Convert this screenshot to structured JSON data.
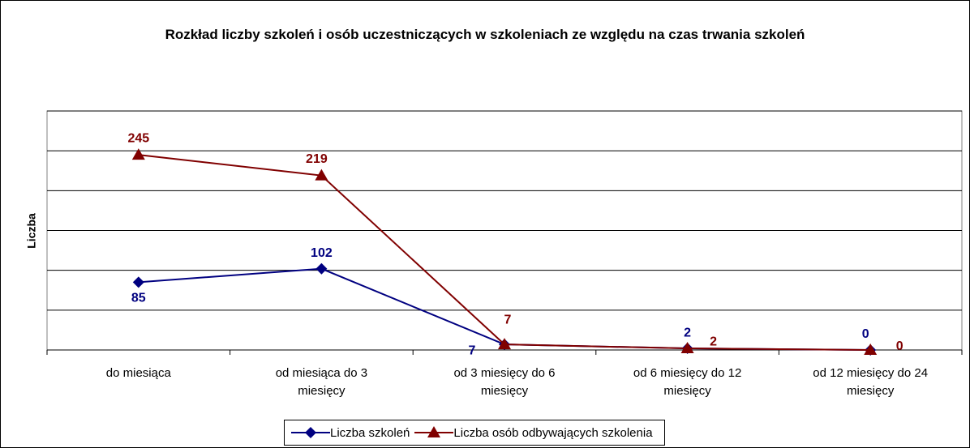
{
  "chart_data": {
    "type": "line",
    "title": "Rozkład liczby szkoleń i osób uczestniczących w szkoleniach ze względu na czas trwania szkoleń",
    "y_label": "Liczba",
    "categories": [
      "do miesiąca",
      "od miesiąca do 3 miesięcy",
      "od 3 miesięcy do 6 miesięcy",
      "od 6 miesięcy do 12 miesięcy",
      "od 12 miesięcy do 24 miesięcy"
    ],
    "series": [
      {
        "name": "Liczba szkoleń",
        "color": "#000080",
        "marker": "diamond",
        "values": [
          85,
          102,
          7,
          2,
          0
        ]
      },
      {
        "name": "Liczba osób odbywających szkolenia",
        "color": "#800000",
        "marker": "triangle",
        "values": [
          245,
          219,
          7,
          2,
          0
        ]
      }
    ],
    "ylim": [
      0,
      300
    ],
    "yticks": [
      0,
      50,
      100,
      150,
      200,
      250,
      300
    ],
    "grid": true,
    "legend": "bottom"
  }
}
